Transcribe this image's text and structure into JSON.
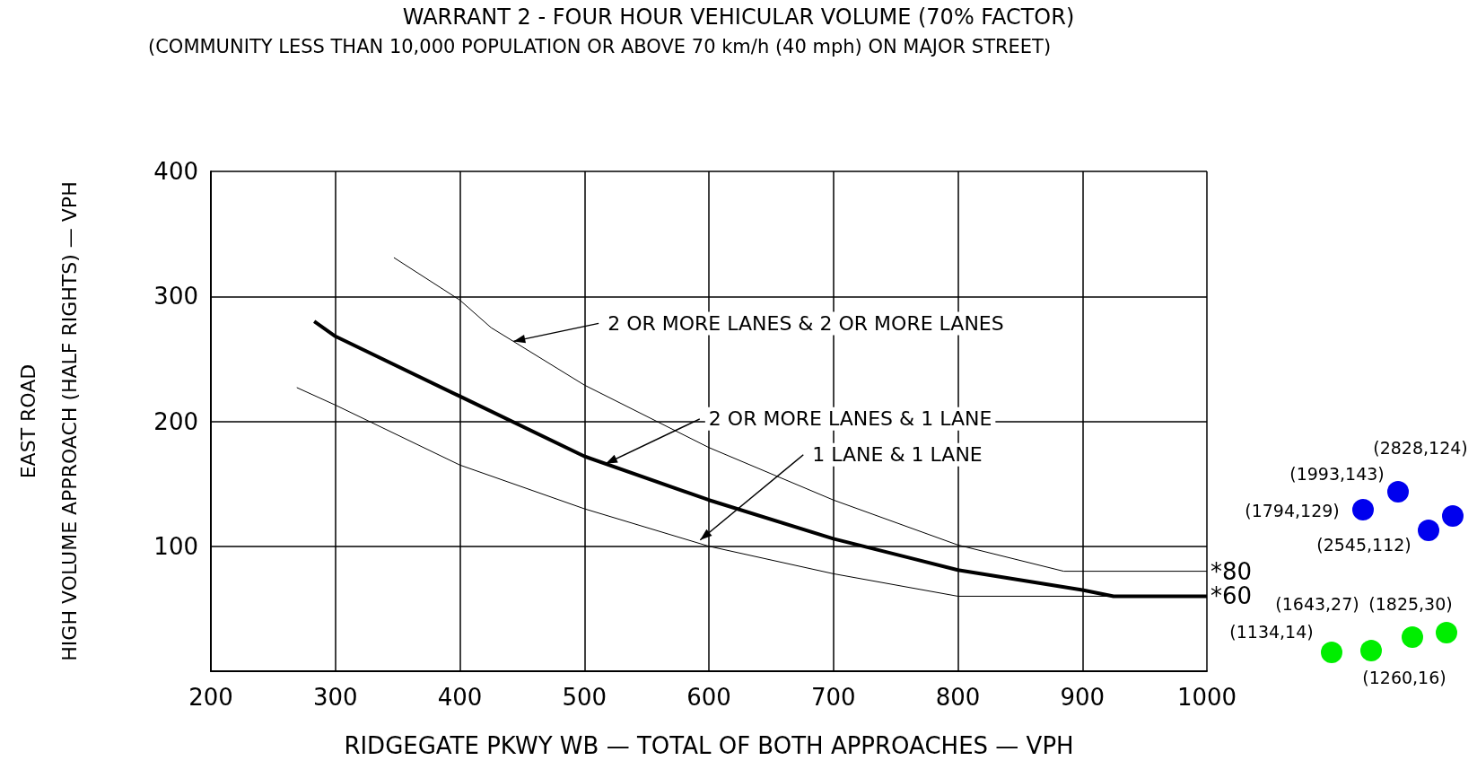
{
  "chart_data": {
    "type": "line",
    "title": "WARRANT 2 - FOUR HOUR VEHICULAR VOLUME (70% FACTOR)",
    "subtitle": "(COMMUNITY LESS THAN 10,000 POPULATION OR ABOVE 70 km/h (40 mph) ON MAJOR STREET)",
    "xlabel": "RIDGEGATE PKWY WB — TOTAL OF BOTH APPROACHES — VPH",
    "ylabel": "EAST ROAD\nHIGH VOLUME APPROACH (HALF RIGHTS) — VPH",
    "series": [
      {
        "color": "#000000",
        "x": [
          347,
          400,
          425,
          500,
          600,
          700,
          800,
          885,
          1000
        ],
        "values": [
          331,
          297,
          275,
          229,
          179,
          137,
          101,
          80,
          80
        ]
      },
      {
        "color": "#000000",
        "x": [
          283,
          300,
          400,
          500,
          600,
          700,
          800,
          900,
          925,
          1000
        ],
        "values": [
          280,
          268,
          220,
          172,
          137,
          106,
          81,
          65,
          60,
          60
        ]
      },
      {
        "color": "#000000",
        "x": [
          269,
          300,
          400,
          500,
          600,
          700,
          800,
          1000
        ],
        "values": [
          227,
          213,
          165,
          130,
          100,
          78,
          60,
          60
        ]
      }
    ],
    "xlim": [
      200,
      1000
    ],
    "xticks": [
      200,
      300,
      400,
      500,
      600,
      700,
      800,
      900,
      1000
    ],
    "ylim": [
      0,
      400
    ],
    "yticks": [
      100,
      200,
      300,
      400
    ],
    "grid": true,
    "marker": "none",
    "line_style": "solid",
    "annotations": [
      {
        "text": "2 OR MORE LANES & 2 OR MORE LANES",
        "x": 443,
        "y": 264
      },
      {
        "text": "2 OR MORE LANES & 1 LANE",
        "x": 517,
        "y": 166
      },
      {
        "text": "1 LANE & 1 LANE",
        "x": 593,
        "y": 105
      },
      {
        "text": "*80",
        "x": 1000,
        "y": 80
      },
      {
        "text": "*60",
        "x": 1000,
        "y": 60
      },
      "(1794,129)",
      "(1993,143)",
      "(2545,112)",
      "(2828,124)",
      "(1134,14)",
      "(1260,16)",
      "(1643,27)",
      "(1825,30)"
    ]
  }
}
